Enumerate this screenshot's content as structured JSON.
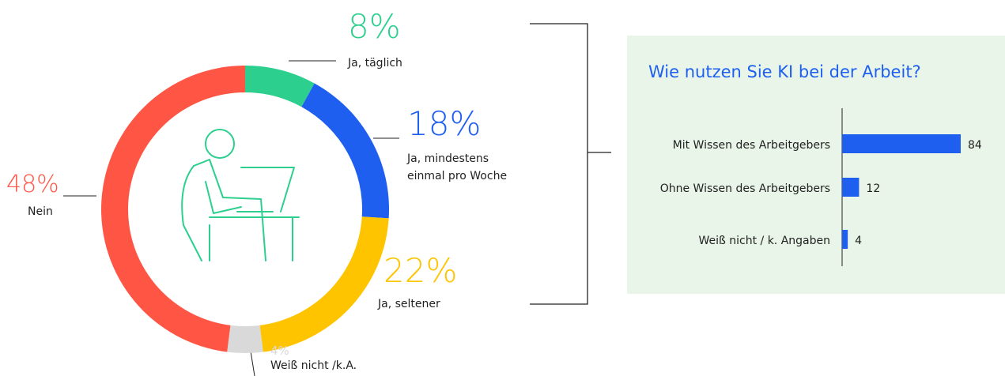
{
  "chart_data": [
    {
      "type": "donut",
      "categories": [
        "Ja, täglich",
        "Ja, mindestens einmal pro Woche",
        "Ja, seltener",
        "Weiß nicht /k.A.",
        "Nein"
      ],
      "values": [
        8,
        18,
        22,
        4,
        48
      ],
      "value_labels": [
        "8%",
        "18%",
        "22%",
        "4%",
        "48%"
      ],
      "colors": [
        "#2dcf8f",
        "#1f5ff0",
        "#ffc400",
        "#d9d9d9",
        "#ff5544"
      ]
    },
    {
      "type": "bar",
      "orientation": "horizontal",
      "title": "Wie nutzen Sie KI bei der Arbeit?",
      "categories": [
        "Mit Wissen des Arbeitgebers",
        "Ohne Wissen des Arbeitgebers",
        "Weiß nicht / k. Angaben"
      ],
      "values": [
        84,
        12,
        4
      ],
      "color": "#1f5ff0"
    }
  ]
}
